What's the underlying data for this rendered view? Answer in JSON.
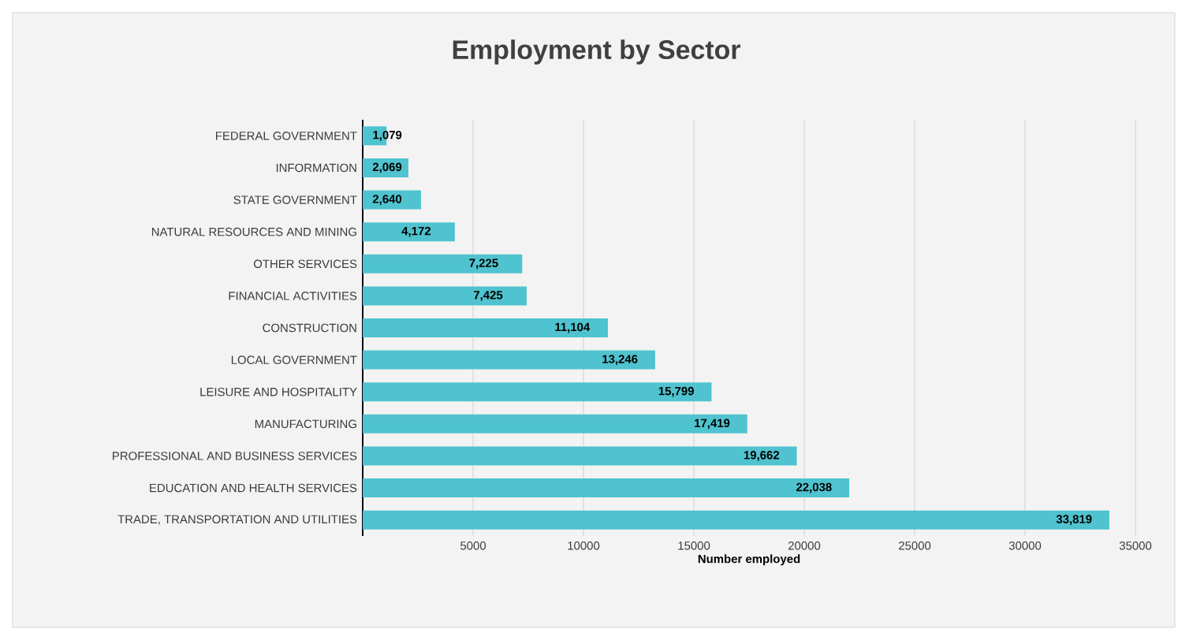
{
  "chart_data": {
    "type": "bar",
    "orientation": "horizontal",
    "title": "Employment by Sector",
    "xlabel": "Number employed",
    "categories": [
      "FEDERAL GOVERNMENT",
      "INFORMATION",
      "STATE GOVERNMENT",
      "NATURAL RESOURCES AND MINING",
      "OTHER SERVICES",
      "FINANCIAL ACTIVITIES",
      "CONSTRUCTION",
      "LOCAL GOVERNMENT",
      "LEISURE AND HOSPITALITY",
      "MANUFACTURING",
      "PROFESSIONAL AND BUSINESS SERVICES",
      "EDUCATION AND HEALTH SERVICES",
      "TRADE, TRANSPORTATION AND UTILITIES"
    ],
    "values": [
      1079,
      2069,
      2640,
      4172,
      7225,
      7425,
      11104,
      13246,
      15799,
      17419,
      19662,
      22038,
      33819
    ],
    "value_labels": [
      "1,079",
      "2,069",
      "2,640",
      "4,172",
      "7,225",
      "7,425",
      "11,104",
      "13,246",
      "15,799",
      "17,419",
      "19,662",
      "22,038",
      "33,819"
    ],
    "color": "#4fc3cf",
    "xlim": [
      0,
      35000
    ],
    "xticks": [
      5000,
      10000,
      15000,
      20000,
      25000,
      30000,
      35000
    ],
    "grid": "x"
  }
}
